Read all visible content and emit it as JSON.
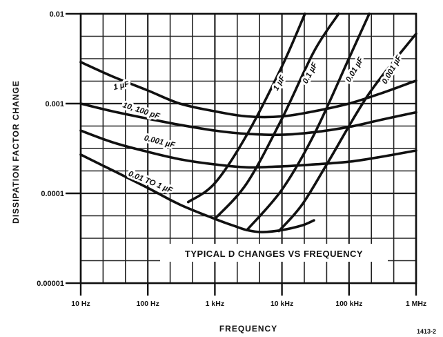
{
  "chart_data": {
    "type": "line",
    "caption": "TYPICAL D CHANGES VS FREQUENCY",
    "xlabel": "FREQUENCY",
    "ylabel": "DISSIPATION FACTOR CHANGE",
    "figure_id": "1413-2",
    "x_scale": "log",
    "y_scale": "log",
    "xlim": [
      10,
      1000000
    ],
    "ylim": [
      1e-05,
      0.01
    ],
    "x_ticks": [
      {
        "value": 10,
        "label": "10 Hz"
      },
      {
        "value": 100,
        "label": "100 Hz"
      },
      {
        "value": 1000,
        "label": "1 kHz"
      },
      {
        "value": 10000,
        "label": "10 kHz"
      },
      {
        "value": 100000,
        "label": "100 kHz"
      },
      {
        "value": 1000000,
        "label": "1 MHz"
      }
    ],
    "y_ticks": [
      {
        "value": 1e-05,
        "label": "0.00001"
      },
      {
        "value": 0.0001,
        "label": "0.0001"
      },
      {
        "value": 0.001,
        "label": "0.001"
      },
      {
        "value": 0.01,
        "label": "0.01"
      }
    ],
    "grid": true,
    "series": [
      {
        "name": "1 µF",
        "x": [
          10,
          30,
          100,
          300,
          1000,
          3000,
          10000,
          30000,
          100000,
          300000,
          1000000
        ],
        "y": [
          0.0029,
          0.002,
          0.0014,
          0.001,
          0.00082,
          0.00072,
          0.00072,
          0.00082,
          0.001,
          0.0013,
          0.0018
        ]
      },
      {
        "name": "10, 100 pF",
        "x": [
          10,
          30,
          100,
          300,
          1000,
          3000,
          10000,
          30000,
          100000,
          300000,
          1000000
        ],
        "y": [
          0.001,
          0.00082,
          0.00068,
          0.00058,
          0.0005,
          0.00046,
          0.00045,
          0.00048,
          0.00055,
          0.00066,
          0.0008
        ]
      },
      {
        "name": "0.001 µF",
        "x": [
          10,
          30,
          100,
          300,
          1000,
          3000,
          10000,
          30000,
          100000,
          300000,
          1000000
        ],
        "y": [
          0.0005,
          0.00037,
          0.00029,
          0.00024,
          0.00021,
          0.000195,
          0.0002,
          0.00021,
          0.000225,
          0.000255,
          0.0003
        ]
      },
      {
        "name": "0.01 TO 1 µF",
        "x": [
          10,
          30,
          100,
          300,
          1000,
          2000,
          3000,
          5000,
          10000,
          20000,
          30000
        ],
        "y": [
          0.00027,
          0.00018,
          0.000115,
          7.5e-05,
          5.2e-05,
          4.3e-05,
          3.9e-05,
          3.7e-05,
          3.9e-05,
          4.4e-05,
          5e-05
        ]
      },
      {
        "name": "1 µF",
        "x": [
          400,
          1000,
          3000,
          10000,
          22000
        ],
        "y": [
          8e-05,
          0.00013,
          0.00045,
          0.0026,
          0.01
        ]
      },
      {
        "name": "0.1 µF",
        "x": [
          1000,
          3000,
          10000,
          30000,
          70000
        ],
        "y": [
          5.2e-05,
          0.00013,
          0.00068,
          0.0038,
          0.01
        ]
      },
      {
        "name": "0.01 µF",
        "x": [
          3000,
          10000,
          30000,
          100000,
          200000
        ],
        "y": [
          3.9e-05,
          0.00011,
          0.00045,
          0.0032,
          0.01
        ]
      },
      {
        "name": "0.001 µF",
        "x": [
          9000,
          20000,
          50000,
          200000,
          1000000
        ],
        "y": [
          3.8e-05,
          7.5e-05,
          0.00023,
          0.0013,
          0.006
        ]
      }
    ],
    "curve_labels": [
      {
        "text": "1 µF",
        "x": 40,
        "y": 0.0016,
        "angle": -14
      },
      {
        "text": "10, 100 pF",
        "x": 80,
        "y": 0.00084,
        "angle": 18
      },
      {
        "text": "0.001 µF",
        "x": 150,
        "y": 0.00038,
        "angle": 14
      },
      {
        "text": "0.01 TO 1 µF",
        "x": 110,
        "y": 0.000135,
        "angle": 22
      },
      {
        "text": "1 µF",
        "x": 9000,
        "y": 0.0017,
        "angle": -60
      },
      {
        "text": "0.1 µF",
        "x": 26000,
        "y": 0.0022,
        "angle": -62
      },
      {
        "text": "0.01 µF",
        "x": 120000,
        "y": 0.0024,
        "angle": -60
      },
      {
        "text": "0.001 µF",
        "x": 430000,
        "y": 0.0024,
        "angle": -60
      }
    ]
  }
}
